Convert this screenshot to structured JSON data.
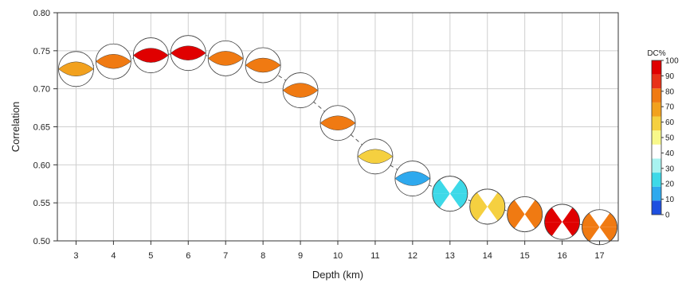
{
  "chart_data": {
    "type": "scatter",
    "title": "",
    "xlabel": "Depth (km)",
    "ylabel": "Correlation",
    "xlim": [
      2.5,
      17.5
    ],
    "ylim": [
      0.5,
      0.8
    ],
    "x_ticks": [
      3,
      4,
      5,
      6,
      7,
      8,
      9,
      10,
      11,
      12,
      13,
      14,
      15,
      16,
      17
    ],
    "y_ticks": [
      "0.50",
      "0.55",
      "0.60",
      "0.65",
      "0.70",
      "0.75",
      "0.80"
    ],
    "grid": true,
    "connected_by": "dashed-line",
    "marker": "focal-mechanism-beachball",
    "series": [
      {
        "points": [
          {
            "x": 3,
            "y": 0.726,
            "dc": 70
          },
          {
            "x": 4,
            "y": 0.736,
            "dc": 75
          },
          {
            "x": 5,
            "y": 0.744,
            "dc": 95
          },
          {
            "x": 6,
            "y": 0.747,
            "dc": 97
          },
          {
            "x": 7,
            "y": 0.74,
            "dc": 75
          },
          {
            "x": 8,
            "y": 0.731,
            "dc": 75
          },
          {
            "x": 9,
            "y": 0.698,
            "dc": 75
          },
          {
            "x": 10,
            "y": 0.655,
            "dc": 75
          },
          {
            "x": 11,
            "y": 0.611,
            "dc": 55
          },
          {
            "x": 12,
            "y": 0.582,
            "dc": 5
          },
          {
            "x": 13,
            "y": 0.562,
            "dc": 15
          },
          {
            "x": 14,
            "y": 0.545,
            "dc": 55
          },
          {
            "x": 15,
            "y": 0.535,
            "dc": 75
          },
          {
            "x": 16,
            "y": 0.525,
            "dc": 95
          },
          {
            "x": 17,
            "y": 0.518,
            "dc": 75
          }
        ]
      }
    ],
    "colorbar": {
      "title": "DC%",
      "min": 0,
      "max": 100,
      "ticks": [
        "0",
        "10",
        "20",
        "30",
        "40",
        "50",
        "60",
        "70",
        "80",
        "90",
        "100"
      ],
      "colors": [
        "#1e4fe0",
        "#2ea9ee",
        "#3dd9e8",
        "#a8f3f0",
        "#ffffff",
        "#f8f88a",
        "#f5d040",
        "#f2a11e",
        "#f07a12",
        "#e83218",
        "#e00000"
      ],
      "placement": "right"
    }
  }
}
